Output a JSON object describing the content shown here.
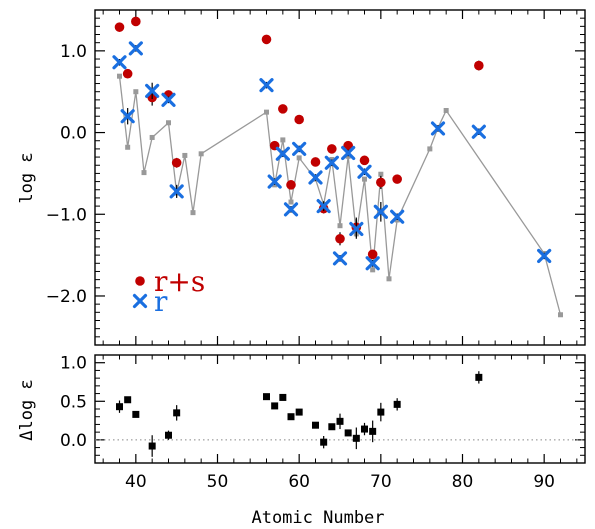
{
  "chart_data": [
    {
      "type": "scatter",
      "panel": "top",
      "xlabel": "",
      "ylabel": "log ε",
      "xlim": [
        35,
        95
      ],
      "ylim": [
        -2.6,
        1.5
      ],
      "y_ticks": [
        1.0,
        0.0,
        -1.0,
        -2.0
      ],
      "y_tick_labels": [
        "1.0",
        "0.0",
        "−1.0",
        "−2.0"
      ],
      "series": [
        {
          "name": "r+s",
          "marker": "circle",
          "color": "#c00000",
          "x": [
            38,
            39,
            40,
            42,
            44,
            45,
            56,
            57,
            58,
            59,
            60,
            62,
            63,
            64,
            65,
            66,
            67,
            68,
            69,
            70,
            72,
            82
          ],
          "y": [
            1.29,
            0.72,
            1.36,
            0.43,
            0.46,
            -0.37,
            1.14,
            -0.16,
            0.29,
            -0.64,
            0.16,
            -0.36,
            -0.93,
            -0.2,
            -1.3,
            -0.16,
            -1.16,
            -0.34,
            -1.49,
            -0.61,
            -0.57,
            0.82
          ],
          "yerr": [
            0.04,
            0.04,
            0.04,
            0.1,
            0.04,
            0.06,
            0.04,
            0.04,
            0.04,
            0.04,
            0.04,
            0.04,
            0.06,
            0.04,
            0.08,
            0.04,
            0.12,
            0.04,
            0.04,
            0.08,
            0.04,
            0.06
          ]
        },
        {
          "name": "r",
          "marker": "x",
          "color": "#1a6fe0",
          "x": [
            38,
            39,
            40,
            42,
            44,
            45,
            56,
            57,
            58,
            59,
            60,
            62,
            63,
            64,
            65,
            66,
            67,
            68,
            69,
            70,
            72,
            77,
            82,
            90
          ],
          "y": [
            0.86,
            0.2,
            1.03,
            0.51,
            0.4,
            -0.72,
            0.58,
            -0.6,
            -0.26,
            -0.94,
            -0.2,
            -0.55,
            -0.9,
            -0.37,
            -1.54,
            -0.25,
            -1.18,
            -0.48,
            -1.6,
            -0.97,
            -1.03,
            0.05,
            0.01,
            -1.51
          ],
          "yerr": [
            0.04,
            0.1,
            0.04,
            0.1,
            0.04,
            0.08,
            0.04,
            0.04,
            0.04,
            0.04,
            0.04,
            0.04,
            0.06,
            0.04,
            0.04,
            0.04,
            0.12,
            0.04,
            0.04,
            0.12,
            0.04,
            0.04,
            0.04,
            0.04
          ]
        },
        {
          "name": "",
          "marker": "square-line",
          "color": "#999999",
          "x": [
            38,
            39,
            40,
            41,
            42,
            44,
            45,
            46,
            47,
            48,
            56,
            57,
            58,
            59,
            60,
            62,
            63,
            64,
            65,
            66,
            67,
            68,
            69,
            70,
            71,
            72,
            76,
            77,
            78,
            90,
            92
          ],
          "y": [
            0.69,
            -0.18,
            0.5,
            -0.49,
            -0.06,
            0.12,
            -0.74,
            -0.28,
            -0.98,
            -0.26,
            0.25,
            -0.64,
            -0.09,
            -0.85,
            -0.31,
            -0.57,
            -0.88,
            -0.33,
            -1.14,
            -0.29,
            -1.24,
            -0.57,
            -1.68,
            -0.51,
            -1.79,
            -1.07,
            -0.2,
            0.06,
            0.27,
            -1.48,
            -2.23
          ]
        }
      ],
      "legend": {
        "placement": "lower-left",
        "entries": [
          {
            "label": "r+s",
            "color": "#c00000",
            "marker": "circle"
          },
          {
            "label": "r",
            "color": "#1a6fe0",
            "marker": "x"
          }
        ]
      }
    },
    {
      "type": "scatter",
      "panel": "bottom",
      "xlabel": "Atomic Number",
      "ylabel": "Δlog ε",
      "xlim": [
        35,
        95
      ],
      "ylim": [
        -0.3,
        1.1
      ],
      "x_ticks": [
        40,
        50,
        60,
        70,
        80,
        90
      ],
      "x_tick_labels": [
        "40",
        "50",
        "60",
        "70",
        "80",
        "90"
      ],
      "y_ticks": [
        1.0,
        0.5,
        0.0
      ],
      "y_tick_labels": [
        "1.0",
        "0.5",
        "0.0"
      ],
      "reference_line": {
        "y": 0.0,
        "style": "dotted",
        "color": "#888888"
      },
      "series": [
        {
          "name": "",
          "marker": "square",
          "color": "#000000",
          "x": [
            38,
            39,
            40,
            42,
            44,
            45,
            56,
            57,
            58,
            59,
            60,
            62,
            63,
            64,
            65,
            66,
            67,
            68,
            69,
            70,
            72,
            82
          ],
          "y": [
            0.43,
            0.52,
            0.33,
            -0.08,
            0.06,
            0.35,
            0.56,
            0.44,
            0.55,
            0.3,
            0.36,
            0.19,
            -0.03,
            0.17,
            0.24,
            0.09,
            0.02,
            0.14,
            0.11,
            0.36,
            0.46,
            0.81
          ],
          "yerr": [
            0.08,
            0.04,
            0.04,
            0.14,
            0.06,
            0.1,
            0.04,
            0.04,
            0.04,
            0.04,
            0.04,
            0.04,
            0.08,
            0.04,
            0.1,
            0.04,
            0.14,
            0.08,
            0.14,
            0.12,
            0.08,
            0.08
          ]
        }
      ]
    }
  ]
}
